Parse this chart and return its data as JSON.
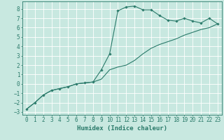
{
  "title": "",
  "xlabel": "Humidex (Indice chaleur)",
  "background_color": "#c8e8e0",
  "line_color": "#2a7a6a",
  "grid_color": "#ffffff",
  "xlim": [
    -0.5,
    23.5
  ],
  "ylim": [
    -3.3,
    8.8
  ],
  "yticks": [
    -3,
    -2,
    -1,
    0,
    1,
    2,
    3,
    4,
    5,
    6,
    7,
    8
  ],
  "xticks": [
    0,
    1,
    2,
    3,
    4,
    5,
    6,
    7,
    8,
    9,
    10,
    11,
    12,
    13,
    14,
    15,
    16,
    17,
    18,
    19,
    20,
    21,
    22,
    23
  ],
  "curve1_x": [
    0,
    1,
    2,
    3,
    4,
    5,
    6,
    7,
    8,
    9,
    10,
    11,
    12,
    13,
    14,
    15,
    16,
    17,
    18,
    19,
    20,
    21,
    22,
    23
  ],
  "curve1_y": [
    -2.7,
    -2.0,
    -1.2,
    -0.7,
    -0.5,
    -0.3,
    0.0,
    0.1,
    0.2,
    1.5,
    3.2,
    7.8,
    8.2,
    8.3,
    7.9,
    7.9,
    7.3,
    6.8,
    6.7,
    7.0,
    6.7,
    6.5,
    7.0,
    6.4
  ],
  "curve2_x": [
    0,
    1,
    2,
    3,
    4,
    5,
    6,
    7,
    8,
    9,
    10,
    11,
    12,
    13,
    14,
    15,
    16,
    17,
    18,
    19,
    20,
    21,
    22,
    23
  ],
  "curve2_y": [
    -2.7,
    -2.0,
    -1.2,
    -0.7,
    -0.5,
    -0.3,
    0.0,
    0.1,
    0.2,
    0.5,
    1.5,
    1.8,
    2.0,
    2.5,
    3.2,
    3.8,
    4.2,
    4.5,
    4.8,
    5.2,
    5.5,
    5.8,
    6.0,
    6.4
  ],
  "axis_fontsize": 6,
  "tick_fontsize": 5.5,
  "xlabel_fontsize": 6.5
}
